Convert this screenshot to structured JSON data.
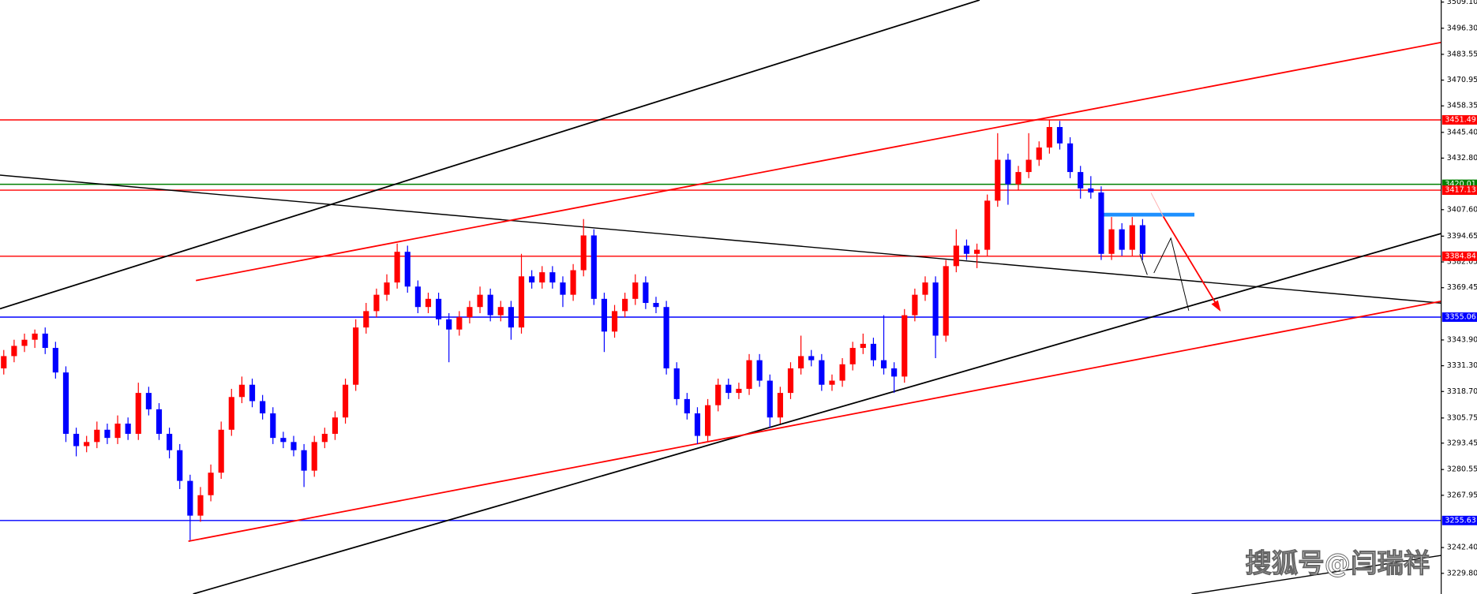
{
  "chart_data": {
    "type": "candlestick",
    "ylim": [
      3219.7,
      3510.1
    ],
    "yticks": [
      {
        "value": 3509.1,
        "label": "3509.10"
      },
      {
        "value": 3496.3,
        "label": "3496.30"
      },
      3483.55,
      {
        "value": 3470.95,
        "label": "3470.95"
      },
      3458.35,
      {
        "value": 3445.4,
        "label": "3445.40"
      },
      {
        "value": 3432.8,
        "label": "3432.80"
      },
      {
        "value": 3407.6,
        "label": "3407.60"
      },
      3394.65,
      3382.05,
      3369.45,
      {
        "value": 3343.9,
        "label": "3343.90"
      },
      {
        "value": 3331.3,
        "label": "3331.30"
      },
      {
        "value": 3318.7,
        "label": "3318.70"
      },
      3305.75,
      3293.45,
      3280.55,
      3267.95,
      {
        "value": 3242.4,
        "label": "3242.40"
      },
      {
        "value": 3229.8,
        "label": "3229.80"
      }
    ],
    "levels": [
      {
        "value": 3451.49,
        "color": "#ff0000"
      },
      {
        "value": 3420.01,
        "color": "#008000"
      },
      {
        "value": 3417.13,
        "color": "#ff0000"
      },
      {
        "value": 3384.84,
        "color": "#ff0000"
      },
      {
        "value": 3355.06,
        "color": "#0000ff"
      },
      {
        "value": 3255.63,
        "color": "#0000ff"
      }
    ],
    "up_color": "#ff0000",
    "down_color": "#0000ff",
    "watermark": "搜狐号@闫瑞祥",
    "candles": [
      [
        3330,
        3339,
        3327,
        3336
      ],
      [
        3336,
        3344,
        3333,
        3341
      ],
      [
        3341,
        3347,
        3338,
        3344
      ],
      [
        3344,
        3349,
        3340,
        3347
      ],
      [
        3347,
        3350,
        3337,
        3340
      ],
      [
        3340,
        3343,
        3325,
        3328
      ],
      [
        3328,
        3331,
        3294,
        3298
      ],
      [
        3298,
        3301,
        3287,
        3292
      ],
      [
        3292,
        3297,
        3289,
        3294
      ],
      [
        3294,
        3304,
        3291,
        3300
      ],
      [
        3300,
        3303,
        3293,
        3296
      ],
      [
        3296,
        3307,
        3293,
        3303
      ],
      [
        3303,
        3306,
        3295,
        3298
      ],
      [
        3298,
        3323,
        3295,
        3318
      ],
      [
        3318,
        3321,
        3307,
        3310
      ],
      [
        3310,
        3313,
        3295,
        3298
      ],
      [
        3298,
        3301,
        3286,
        3290
      ],
      [
        3290,
        3293,
        3271,
        3275
      ],
      [
        3275,
        3278,
        3246,
        3258
      ],
      [
        3258,
        3272,
        3255,
        3268
      ],
      [
        3268,
        3283,
        3265,
        3279
      ],
      [
        3279,
        3304,
        3276,
        3300
      ],
      [
        3300,
        3320,
        3297,
        3316
      ],
      [
        3316,
        3326,
        3313,
        3322
      ],
      [
        3322,
        3325,
        3311,
        3314
      ],
      [
        3314,
        3317,
        3305,
        3308
      ],
      [
        3308,
        3311,
        3293,
        3296
      ],
      [
        3296,
        3299,
        3291,
        3294
      ],
      [
        3294,
        3297,
        3287,
        3290
      ],
      [
        3290,
        3293,
        3272,
        3280
      ],
      [
        3280,
        3297,
        3277,
        3294
      ],
      [
        3294,
        3301,
        3291,
        3298
      ],
      [
        3298,
        3309,
        3295,
        3306
      ],
      [
        3306,
        3325,
        3303,
        3322
      ],
      [
        3322,
        3354,
        3319,
        3350
      ],
      [
        3350,
        3362,
        3347,
        3358
      ],
      [
        3358,
        3369,
        3355,
        3366
      ],
      [
        3366,
        3376,
        3363,
        3372
      ],
      [
        3372,
        3391,
        3369,
        3387
      ],
      [
        3387,
        3390,
        3367,
        3370
      ],
      [
        3370,
        3373,
        3357,
        3360
      ],
      [
        3360,
        3367,
        3357,
        3364
      ],
      [
        3364,
        3367,
        3351,
        3354
      ],
      [
        3354,
        3357,
        3333,
        3349
      ],
      [
        3349,
        3358,
        3346,
        3355
      ],
      [
        3355,
        3363,
        3352,
        3360
      ],
      [
        3360,
        3370,
        3357,
        3366
      ],
      [
        3366,
        3369,
        3353,
        3356
      ],
      [
        3356,
        3363,
        3353,
        3360
      ],
      [
        3360,
        3363,
        3344,
        3350
      ],
      [
        3350,
        3386,
        3347,
        3375
      ],
      [
        3375,
        3378,
        3369,
        3372
      ],
      [
        3372,
        3380,
        3369,
        3377
      ],
      [
        3377,
        3380,
        3369,
        3372
      ],
      [
        3372,
        3375,
        3360,
        3366
      ],
      [
        3366,
        3381,
        3363,
        3378
      ],
      [
        3378,
        3403,
        3375,
        3395
      ],
      [
        3395,
        3398,
        3361,
        3364
      ],
      [
        3364,
        3367,
        3338,
        3348
      ],
      [
        3348,
        3361,
        3345,
        3358
      ],
      [
        3358,
        3367,
        3355,
        3364
      ],
      [
        3364,
        3376,
        3361,
        3372
      ],
      [
        3372,
        3375,
        3359,
        3362
      ],
      [
        3362,
        3365,
        3357,
        3360
      ],
      [
        3360,
        3363,
        3327,
        3330
      ],
      [
        3330,
        3333,
        3312,
        3315
      ],
      [
        3315,
        3318,
        3305,
        3308
      ],
      [
        3308,
        3311,
        3293,
        3297
      ],
      [
        3297,
        3315,
        3294,
        3312
      ],
      [
        3312,
        3325,
        3309,
        3322
      ],
      [
        3322,
        3325,
        3315,
        3318
      ],
      [
        3318,
        3323,
        3315,
        3320
      ],
      [
        3320,
        3337,
        3317,
        3334
      ],
      [
        3334,
        3337,
        3321,
        3324
      ],
      [
        3324,
        3327,
        3301,
        3306
      ],
      [
        3306,
        3321,
        3303,
        3318
      ],
      [
        3318,
        3333,
        3315,
        3330
      ],
      [
        3330,
        3346,
        3327,
        3336
      ],
      [
        3336,
        3339,
        3331,
        3334
      ],
      [
        3334,
        3337,
        3319,
        3322
      ],
      [
        3322,
        3327,
        3319,
        3324
      ],
      [
        3324,
        3335,
        3321,
        3332
      ],
      [
        3332,
        3343,
        3329,
        3340
      ],
      [
        3340,
        3347,
        3337,
        3342
      ],
      [
        3342,
        3345,
        3331,
        3334
      ],
      [
        3334,
        3356,
        3327,
        3330
      ],
      [
        3330,
        3333,
        3318,
        3326
      ],
      [
        3326,
        3359,
        3323,
        3356
      ],
      [
        3356,
        3369,
        3353,
        3366
      ],
      [
        3366,
        3375,
        3363,
        3372
      ],
      [
        3372,
        3375,
        3335,
        3346
      ],
      [
        3346,
        3383,
        3343,
        3380
      ],
      [
        3380,
        3398,
        3377,
        3390
      ],
      [
        3390,
        3393,
        3383,
        3386
      ],
      [
        3386,
        3391,
        3379,
        3388
      ],
      [
        3388,
        3415,
        3385,
        3412
      ],
      [
        3412,
        3445,
        3409,
        3432
      ],
      [
        3432,
        3435,
        3410,
        3420
      ],
      [
        3420,
        3429,
        3417,
        3426
      ],
      [
        3426,
        3445,
        3423,
        3432
      ],
      [
        3432,
        3441,
        3429,
        3438
      ],
      [
        3438,
        3451.5,
        3435,
        3448
      ],
      [
        3448,
        3451,
        3437,
        3440
      ],
      [
        3440,
        3443,
        3423,
        3426
      ],
      [
        3426,
        3429,
        3413,
        3418
      ],
      [
        3418,
        3424,
        3413,
        3416
      ],
      [
        3416,
        3419,
        3383,
        3386
      ],
      [
        3386,
        3404,
        3383,
        3398
      ],
      [
        3398,
        3401,
        3385,
        3388
      ],
      [
        3388,
        3404,
        3385,
        3400
      ],
      [
        3400,
        3403,
        3383,
        3386
      ]
    ]
  }
}
